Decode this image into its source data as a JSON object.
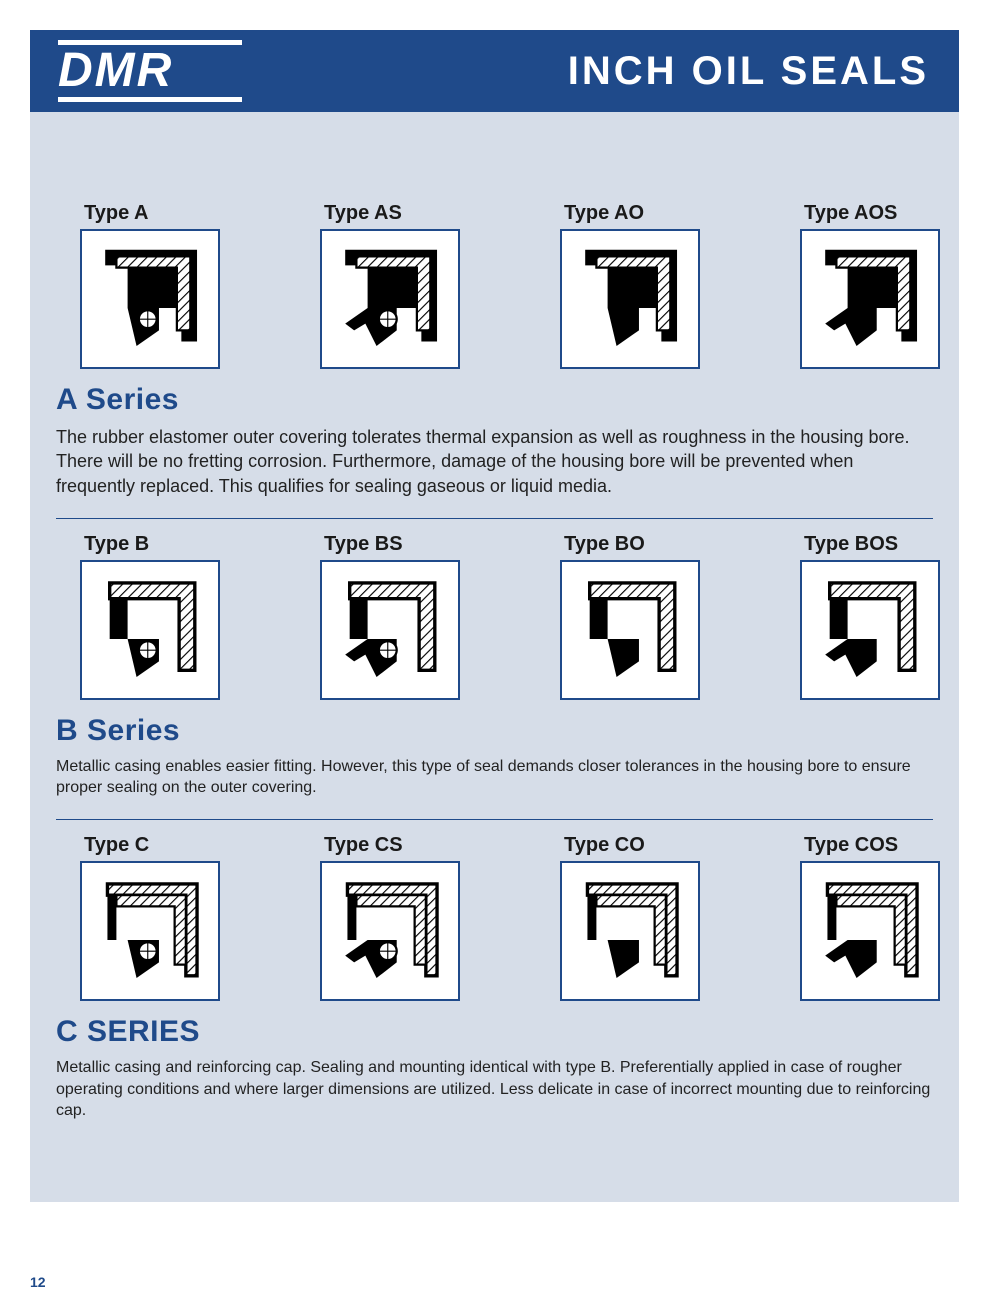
{
  "brand": "DMR",
  "page_title": "INCH OIL SEALS",
  "page_number": "12",
  "colors": {
    "brand_blue": "#1f4a8a",
    "page_bg": "#d6dde8",
    "text": "#1a1a1a",
    "white": "#ffffff"
  },
  "series": [
    {
      "title": "A Series",
      "types": [
        {
          "label": "Type A",
          "shape": "A",
          "dust": false,
          "spring": true
        },
        {
          "label": "Type AS",
          "shape": "A",
          "dust": true,
          "spring": true
        },
        {
          "label": "Type AO",
          "shape": "A",
          "dust": false,
          "spring": false
        },
        {
          "label": "Type AOS",
          "shape": "A",
          "dust": true,
          "spring": false
        }
      ],
      "desc": "The rubber elastomer outer covering tolerates thermal expansion as well as roughness in the housing bore. There will be no fretting corrosion. Furthermore, damage of the housing bore will be prevented when frequently replaced. This qualifies for sealing gaseous or liquid media.",
      "desc_small": false
    },
    {
      "title": "B Series",
      "types": [
        {
          "label": "Type B",
          "shape": "B",
          "dust": false,
          "spring": true
        },
        {
          "label": "Type BS",
          "shape": "B",
          "dust": true,
          "spring": true
        },
        {
          "label": "Type BO",
          "shape": "B",
          "dust": false,
          "spring": false
        },
        {
          "label": "Type BOS",
          "shape": "B",
          "dust": true,
          "spring": false
        }
      ],
      "desc": "Metallic casing enables easier fitting. However, this type of seal demands closer tolerances in the housing bore to ensure proper sealing on the outer covering.",
      "desc_small": true
    },
    {
      "title": "C SERIES",
      "types": [
        {
          "label": "Type C",
          "shape": "C",
          "dust": false,
          "spring": true
        },
        {
          "label": "Type CS",
          "shape": "C",
          "dust": true,
          "spring": true
        },
        {
          "label": "Type CO",
          "shape": "C",
          "dust": false,
          "spring": false
        },
        {
          "label": "Type COS",
          "shape": "C",
          "dust": true,
          "spring": false
        }
      ],
      "desc": "Metallic casing and reinforcing cap. Sealing and mounting identical with type B. Preferentially applied in case of rougher operating conditions and where larger dimensions are utilized. Less delicate in case of incorrect mounting due to reinforcing cap.",
      "desc_small": true
    }
  ]
}
